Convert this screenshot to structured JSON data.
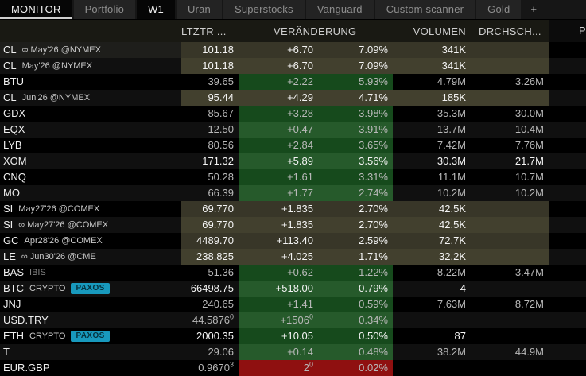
{
  "tabs": [
    {
      "label": "MONITOR",
      "active": true,
      "focused": true
    },
    {
      "label": "Portfolio",
      "active": false
    },
    {
      "label": "W1",
      "active": true
    },
    {
      "label": "Uran",
      "active": false
    },
    {
      "label": "Superstocks",
      "active": false
    },
    {
      "label": "Vanguard",
      "active": false
    },
    {
      "label": "Custom scanner",
      "active": false
    },
    {
      "label": "Gold",
      "active": false
    },
    {
      "label": "+",
      "active": false,
      "plus": true
    }
  ],
  "columns": {
    "price": "LTZTR ...",
    "change": "VERÄNDERUNG",
    "volume": "VOLUMEN",
    "avg": "DRCHSCH...",
    "p": "P"
  },
  "colors": {
    "olive_light": "#42402e",
    "olive_dark": "#383628",
    "green_light": "#265a2b",
    "green_dark": "#164a1c",
    "red_light": "#a31515",
    "red_dark": "#8f1010",
    "zebra_light": "#101010",
    "zebra_dark": "#000000",
    "text_bright": "#f4f4f4",
    "text_dim": "#b9b9b9",
    "paxos_bg": "#1899bd",
    "paxos_text": "#06323e",
    "ticker_selected_bg": "#1e1e1b"
  },
  "rows": [
    {
      "sym": "CL",
      "det": "∞ May'26 @NYMEX",
      "badge": "",
      "price": "101.18",
      "psup": "",
      "chg": "+6.70",
      "csup": "",
      "pct": "7.09%",
      "vol": "341K",
      "avg": "",
      "hl": "olive",
      "bright": true,
      "detDim": false,
      "tickHl": true
    },
    {
      "sym": "CL",
      "det": "May'26 @NYMEX",
      "badge": "",
      "price": "101.18",
      "psup": "",
      "chg": "+6.70",
      "csup": "",
      "pct": "7.09%",
      "vol": "341K",
      "avg": "",
      "hl": "olive",
      "bright": true,
      "detDim": false,
      "tickHl": false
    },
    {
      "sym": "BTU",
      "det": "",
      "badge": "",
      "price": "39.65",
      "psup": "",
      "chg": "+2.22",
      "csup": "",
      "pct": "5.93%",
      "vol": "4.79M",
      "avg": "3.26M",
      "hl": "green",
      "bright": false,
      "detDim": false,
      "tickHl": false
    },
    {
      "sym": "CL",
      "det": "Jun'26 @NYMEX",
      "badge": "",
      "price": "95.44",
      "psup": "",
      "chg": "+4.29",
      "csup": "",
      "pct": "4.71%",
      "vol": "185K",
      "avg": "",
      "hl": "olive",
      "bright": true,
      "detDim": false,
      "tickHl": false
    },
    {
      "sym": "GDX",
      "det": "",
      "badge": "",
      "price": "85.67",
      "psup": "",
      "chg": "+3.28",
      "csup": "",
      "pct": "3.98%",
      "vol": "35.3M",
      "avg": "30.0M",
      "hl": "green",
      "bright": false,
      "detDim": false,
      "tickHl": false
    },
    {
      "sym": "EQX",
      "det": "",
      "badge": "",
      "price": "12.50",
      "psup": "",
      "chg": "+0.47",
      "csup": "",
      "pct": "3.91%",
      "vol": "13.7M",
      "avg": "10.4M",
      "hl": "green",
      "bright": false,
      "detDim": false,
      "tickHl": false
    },
    {
      "sym": "LYB",
      "det": "",
      "badge": "",
      "price": "80.56",
      "psup": "",
      "chg": "+2.84",
      "csup": "",
      "pct": "3.65%",
      "vol": "7.42M",
      "avg": "7.76M",
      "hl": "green",
      "bright": false,
      "detDim": false,
      "tickHl": false
    },
    {
      "sym": "XOM",
      "det": "",
      "badge": "",
      "price": "171.32",
      "psup": "",
      "chg": "+5.89",
      "csup": "",
      "pct": "3.56%",
      "vol": "30.3M",
      "avg": "21.7M",
      "hl": "green",
      "bright": true,
      "detDim": false,
      "tickHl": false
    },
    {
      "sym": "CNQ",
      "det": "",
      "badge": "",
      "price": "50.28",
      "psup": "",
      "chg": "+1.61",
      "csup": "",
      "pct": "3.31%",
      "vol": "11.1M",
      "avg": "10.7M",
      "hl": "green",
      "bright": false,
      "detDim": false,
      "tickHl": false
    },
    {
      "sym": "MO",
      "det": "",
      "badge": "",
      "price": "66.39",
      "psup": "",
      "chg": "+1.77",
      "csup": "",
      "pct": "2.74%",
      "vol": "10.2M",
      "avg": "10.2M",
      "hl": "green",
      "bright": false,
      "detDim": false,
      "tickHl": false
    },
    {
      "sym": "SI",
      "det": "May27'26 @COMEX",
      "badge": "",
      "price": "69.770",
      "psup": "",
      "chg": "+1.835",
      "csup": "",
      "pct": "2.70%",
      "vol": "42.5K",
      "avg": "",
      "hl": "olive",
      "bright": true,
      "detDim": false,
      "tickHl": false
    },
    {
      "sym": "SI",
      "det": "∞ May27'26 @COMEX",
      "badge": "",
      "price": "69.770",
      "psup": "",
      "chg": "+1.835",
      "csup": "",
      "pct": "2.70%",
      "vol": "42.5K",
      "avg": "",
      "hl": "olive",
      "bright": true,
      "detDim": false,
      "tickHl": false
    },
    {
      "sym": "GC",
      "det": "Apr28'26 @COMEX",
      "badge": "",
      "price": "4489.70",
      "psup": "",
      "chg": "+113.40",
      "csup": "",
      "pct": "2.59%",
      "vol": "72.7K",
      "avg": "",
      "hl": "olive",
      "bright": true,
      "detDim": false,
      "tickHl": false
    },
    {
      "sym": "LE",
      "det": "∞ Jun30'26 @CME",
      "badge": "",
      "price": "238.825",
      "psup": "",
      "chg": "+4.025",
      "csup": "",
      "pct": "1.71%",
      "vol": "32.2K",
      "avg": "",
      "hl": "olive",
      "bright": true,
      "detDim": false,
      "tickHl": false
    },
    {
      "sym": "BAS",
      "det": "IBIS",
      "badge": "",
      "price": "51.36",
      "psup": "",
      "chg": "+0.62",
      "csup": "",
      "pct": "1.22%",
      "vol": "8.22M",
      "avg": "3.47M",
      "hl": "green",
      "bright": false,
      "detDim": true,
      "tickHl": false
    },
    {
      "sym": "BTC",
      "det": "CRYPTO",
      "badge": "PAXOS",
      "price": "66498.75",
      "psup": "",
      "chg": "+518.00",
      "csup": "",
      "pct": "0.79%",
      "vol": "4",
      "avg": "",
      "hl": "green",
      "bright": true,
      "detDim": false,
      "tickHl": false
    },
    {
      "sym": "JNJ",
      "det": "",
      "badge": "",
      "price": "240.65",
      "psup": "",
      "chg": "+1.41",
      "csup": "",
      "pct": "0.59%",
      "vol": "7.63M",
      "avg": "8.72M",
      "hl": "green",
      "bright": false,
      "detDim": false,
      "tickHl": false
    },
    {
      "sym": "USD.TRY",
      "det": "",
      "badge": "",
      "price": "44.5876",
      "psup": "0",
      "chg": "+1506",
      "csup": "0",
      "pct": "0.34%",
      "vol": "",
      "avg": "",
      "hl": "green",
      "bright": false,
      "detDim": false,
      "tickHl": false
    },
    {
      "sym": "ETH",
      "det": "CRYPTO",
      "badge": "PAXOS",
      "price": "2000.35",
      "psup": "",
      "chg": "+10.05",
      "csup": "",
      "pct": "0.50%",
      "vol": "87",
      "avg": "",
      "hl": "green",
      "bright": true,
      "detDim": false,
      "tickHl": false
    },
    {
      "sym": "T",
      "det": "",
      "badge": "",
      "price": "29.06",
      "psup": "",
      "chg": "+0.14",
      "csup": "",
      "pct": "0.48%",
      "vol": "38.2M",
      "avg": "44.9M",
      "hl": "green",
      "bright": false,
      "detDim": false,
      "tickHl": false
    },
    {
      "sym": "EUR.GBP",
      "det": "",
      "badge": "",
      "price": "0.9670",
      "psup": "3",
      "chg": "2",
      "csup": "0",
      "pct": "0.02%",
      "vol": "",
      "avg": "",
      "hl": "red",
      "bright": false,
      "detDim": false,
      "tickHl": false
    }
  ]
}
